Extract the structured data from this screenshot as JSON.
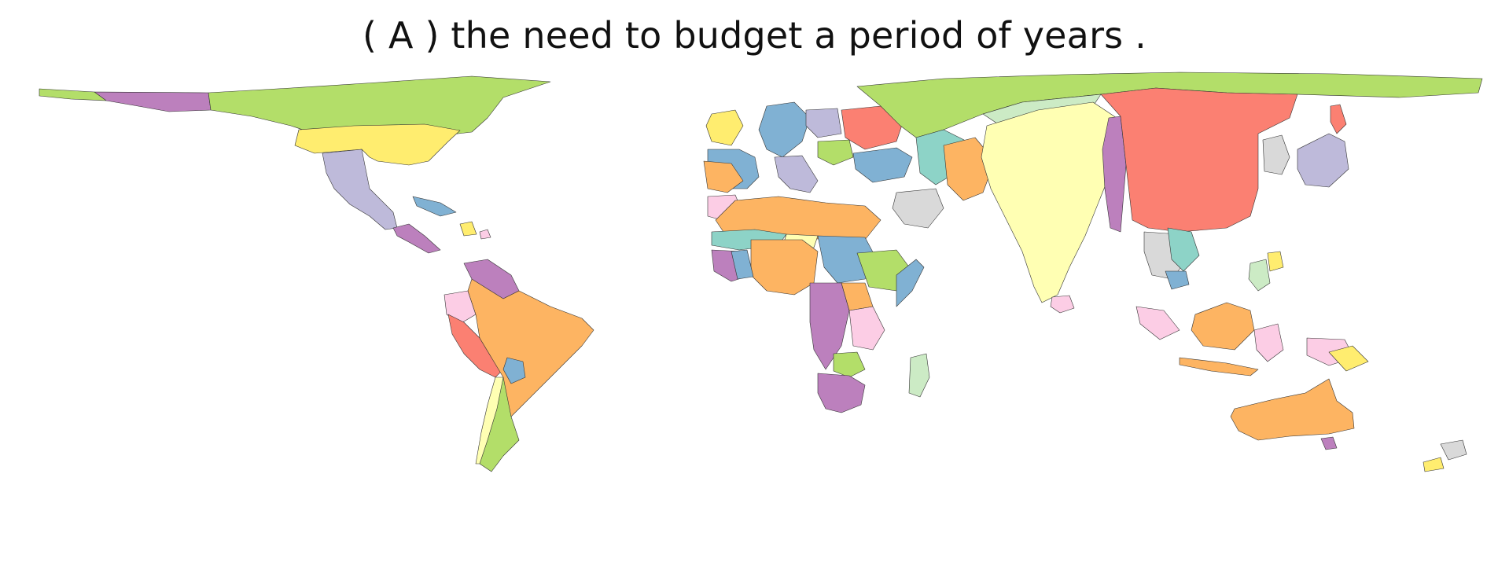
{
  "title": "( A ) the need to budget a period of years .",
  "palette": {
    "green": "#b3de69",
    "red": "#fb8072",
    "orange": "#fdb462",
    "yellow": "#ffed6f",
    "paleyellow": "#ffffb3",
    "lavender": "#bebada",
    "blue": "#80b1d3",
    "teal": "#8dd3c7",
    "pink": "#fccde5",
    "purple": "#bc80bd",
    "grey": "#d9d9d9",
    "mint": "#ccebc5"
  },
  "regions": [
    {
      "id": "alaska-west",
      "color": "purple"
    },
    {
      "id": "canada-arctic",
      "color": "green"
    },
    {
      "id": "usa",
      "color": "yellow"
    },
    {
      "id": "mexico",
      "color": "lavender"
    },
    {
      "id": "central-america",
      "color": "purple"
    },
    {
      "id": "caribbean",
      "color": "blue"
    },
    {
      "id": "venezuela",
      "color": "purple"
    },
    {
      "id": "colombia",
      "color": "pink"
    },
    {
      "id": "peru",
      "color": "red"
    },
    {
      "id": "brazil",
      "color": "orange"
    },
    {
      "id": "bolivia",
      "color": "green"
    },
    {
      "id": "argentina",
      "color": "green"
    },
    {
      "id": "chile",
      "color": "paleyellow"
    },
    {
      "id": "russia",
      "color": "green"
    },
    {
      "id": "scandinavia",
      "color": "blue"
    },
    {
      "id": "europe-west",
      "color": "blue"
    },
    {
      "id": "europe-central",
      "color": "lavender"
    },
    {
      "id": "europe-east",
      "color": "red"
    },
    {
      "id": "iberia",
      "color": "orange"
    },
    {
      "id": "uk",
      "color": "yellow"
    },
    {
      "id": "turkey",
      "color": "blue"
    },
    {
      "id": "middle-east",
      "color": "grey"
    },
    {
      "id": "iran",
      "color": "orange"
    },
    {
      "id": "central-asia",
      "color": "teal"
    },
    {
      "id": "india",
      "color": "paleyellow"
    },
    {
      "id": "nepal-east",
      "color": "purple"
    },
    {
      "id": "china",
      "color": "red"
    },
    {
      "id": "mongolia-strip",
      "color": "mint"
    },
    {
      "id": "japan",
      "color": "lavender"
    },
    {
      "id": "korea",
      "color": "grey"
    },
    {
      "id": "southeast-asia",
      "color": "grey"
    },
    {
      "id": "vietnam",
      "color": "teal"
    },
    {
      "id": "indonesia",
      "color": "pink"
    },
    {
      "id": "borneo",
      "color": "orange"
    },
    {
      "id": "philippines",
      "color": "mint"
    },
    {
      "id": "north-africa",
      "color": "orange"
    },
    {
      "id": "morocco",
      "color": "pink"
    },
    {
      "id": "sahel",
      "color": "teal"
    },
    {
      "id": "west-africa",
      "color": "orange"
    },
    {
      "id": "ethiopia",
      "color": "green"
    },
    {
      "id": "sudan",
      "color": "blue"
    },
    {
      "id": "congo",
      "color": "purple"
    },
    {
      "id": "east-africa",
      "color": "pink"
    },
    {
      "id": "southern-africa",
      "color": "purple"
    },
    {
      "id": "madagascar",
      "color": "mint"
    },
    {
      "id": "australia",
      "color": "orange"
    },
    {
      "id": "new-zealand",
      "color": "grey"
    },
    {
      "id": "sri-lanka",
      "color": "pink"
    }
  ]
}
